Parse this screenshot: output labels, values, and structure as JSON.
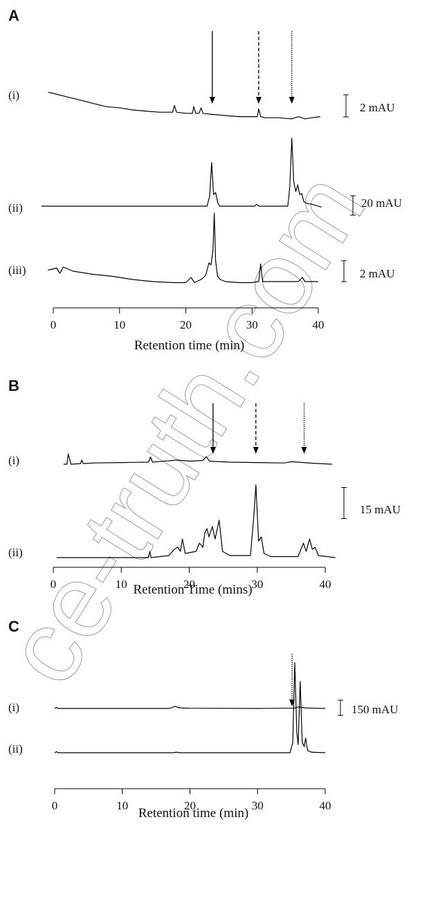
{
  "watermark": "ce-truth.com",
  "chart_data": [
    {
      "type": "line",
      "panel_label": "A",
      "xlabel": "Retention time (min)",
      "xlim": [
        0,
        40
      ],
      "xticks": [
        0,
        10,
        20,
        30,
        40
      ],
      "arrows": [
        {
          "x": 24,
          "style": "solid"
        },
        {
          "x": 31,
          "style": "dashed"
        },
        {
          "x": 36,
          "style": "dotted"
        }
      ],
      "series": [
        {
          "name": "(i)",
          "color": "#000000",
          "scale_bar": {
            "value": 2,
            "label": "2 mAU"
          },
          "x": [
            -0.8,
            0,
            2,
            4,
            6,
            8,
            10,
            12,
            14,
            16,
            18,
            18.3,
            18.6,
            20,
            21,
            21.2,
            21.5,
            22,
            22.3,
            22.6,
            24,
            26,
            28,
            30,
            30.8,
            31,
            31.3,
            32,
            34,
            36,
            37,
            38,
            39,
            40.3
          ],
          "values": [
            0.1,
            0,
            -0.3,
            -0.6,
            -0.9,
            -1.2,
            -1.3,
            -1.5,
            -1.6,
            -1.7,
            -1.7,
            -1.1,
            -1.7,
            -1.8,
            -1.8,
            -1.2,
            -1.8,
            -1.8,
            -1.3,
            -1.8,
            -1.9,
            -2,
            -2.1,
            -2.1,
            -2.1,
            -1.4,
            -2.1,
            -2.2,
            -2.2,
            -2.3,
            -2.1,
            -2.3,
            -2.2,
            -2.1
          ]
        },
        {
          "name": "(ii)",
          "color": "#000000",
          "scale_bar": {
            "value": 20,
            "label": "20 mAU"
          },
          "x": [
            -1.8,
            10,
            23.2,
            23.6,
            23.9,
            24.2,
            24.5,
            24.8,
            25.1,
            25.6,
            30.4,
            30.7,
            31,
            35.4,
            35.7,
            36,
            36.3,
            36.6,
            36.9,
            37.2,
            37.5,
            37.8,
            38.2,
            39,
            40.5
          ],
          "values": [
            0,
            0,
            0,
            10,
            45,
            12,
            14,
            4,
            0,
            0,
            0,
            2,
            0,
            0,
            20,
            70,
            25,
            15,
            22,
            12,
            13,
            5,
            3,
            2,
            -1
          ]
        },
        {
          "name": "(iii)",
          "color": "#000000",
          "scale_bar": {
            "value": 2,
            "label": "2 mAU"
          },
          "x": [
            -0.8,
            0.5,
            1,
            1.5,
            3,
            6,
            9,
            12,
            15,
            18,
            20,
            20.8,
            21.3,
            22,
            22.5,
            23,
            23.5,
            23.8,
            24.1,
            24.3,
            24.5,
            24.8,
            25.2,
            26,
            28,
            30,
            31,
            31.3,
            31.6,
            33,
            35,
            37,
            37.6,
            38,
            40
          ],
          "values": [
            0.1,
            0.3,
            -0.2,
            0.4,
            0,
            -0.3,
            -0.5,
            -0.8,
            -1,
            -1.1,
            -1.1,
            -0.6,
            -1.1,
            -0.9,
            -0.7,
            -0.4,
            0.8,
            0.6,
            2,
            5.6,
            1,
            -0.5,
            -0.8,
            -1,
            -1.1,
            -1.1,
            -1,
            0.7,
            -1,
            -1,
            -1,
            -1,
            -0.6,
            -1,
            -1
          ]
        }
      ]
    },
    {
      "type": "line",
      "panel_label": "B",
      "xlabel": "Retention Time (mins)",
      "xlim": [
        0,
        40
      ],
      "xticks": [
        0,
        10,
        20,
        30,
        40
      ],
      "arrows": [
        {
          "x": 23.5,
          "style": "solid"
        },
        {
          "x": 29.8,
          "style": "dashed"
        },
        {
          "x": 36.9,
          "style": "dotted"
        }
      ],
      "series": [
        {
          "name": "(i)",
          "color": "#000000",
          "x": [
            1.5,
            2,
            2.2,
            2.6,
            4,
            4.2,
            4.4,
            6,
            10,
            12,
            14,
            14.3,
            14.6,
            16,
            17,
            18,
            19,
            20,
            22,
            22.5,
            23,
            24,
            26,
            30,
            34,
            35,
            36,
            38,
            41
          ],
          "values": [
            0,
            0,
            5,
            0,
            0.3,
            2,
            0.3,
            0.6,
            0.8,
            0.9,
            1,
            3.5,
            1,
            1.4,
            1.6,
            2,
            1.8,
            1.5,
            1.8,
            3.5,
            1.5,
            1.3,
            1,
            0.8,
            0.6,
            1.2,
            1,
            0.5,
            0
          ]
        },
        {
          "name": "(ii)",
          "color": "#000000",
          "scale_bar": {
            "value": 15,
            "label": "15 mAU"
          },
          "x": [
            0.5,
            10,
            14,
            14.2,
            14.4,
            17,
            17.8,
            18.3,
            18.7,
            19,
            19.4,
            21,
            21.5,
            22,
            22.3,
            22.6,
            22.9,
            23.4,
            23.8,
            24.4,
            24.9,
            26,
            29,
            29.5,
            29.8,
            30.2,
            30.6,
            31,
            32,
            36,
            36.8,
            37.2,
            37.7,
            38.1,
            38.5,
            39,
            41.5
          ],
          "values": [
            0,
            0,
            0,
            3,
            0,
            1,
            4,
            5,
            3,
            9,
            2,
            3,
            7,
            5,
            12,
            14,
            10,
            15,
            9,
            18,
            3,
            1,
            1,
            20,
            35,
            8,
            10,
            2,
            0.5,
            0.5,
            7,
            3,
            9,
            4,
            5,
            1,
            0
          ]
        }
      ]
    },
    {
      "type": "line",
      "panel_label": "C",
      "xlabel": "Retention time (min)",
      "xlim": [
        0,
        40
      ],
      "xticks": [
        0,
        10,
        20,
        30,
        40
      ],
      "arrows": [
        {
          "x": 35.1,
          "style": "dotted"
        }
      ],
      "series": [
        {
          "name": "(i)",
          "color": "#000000",
          "x": [
            0,
            0.3,
            0.5,
            1,
            10,
            17,
            17.8,
            18.5,
            20,
            30,
            35.5,
            36,
            36.5,
            37,
            38,
            40
          ],
          "values": [
            0,
            10,
            0,
            0,
            0,
            0,
            20,
            5,
            2,
            0,
            3,
            15,
            10,
            5,
            3,
            0
          ]
        },
        {
          "name": "(ii)",
          "color": "#000000",
          "scale_bar": {
            "value": 150,
            "label": "150 mAU"
          },
          "x": [
            0,
            0.3,
            0.5,
            1,
            17.5,
            18,
            18.5,
            34.8,
            35.2,
            35.5,
            35.8,
            36,
            36.3,
            36.6,
            36.9,
            37.1,
            37.4,
            38,
            40
          ],
          "values": [
            0,
            10,
            0,
            0,
            0,
            5,
            0,
            0,
            100,
            886,
            200,
            80,
            702,
            100,
            60,
            143,
            20,
            5,
            0
          ]
        }
      ]
    }
  ]
}
